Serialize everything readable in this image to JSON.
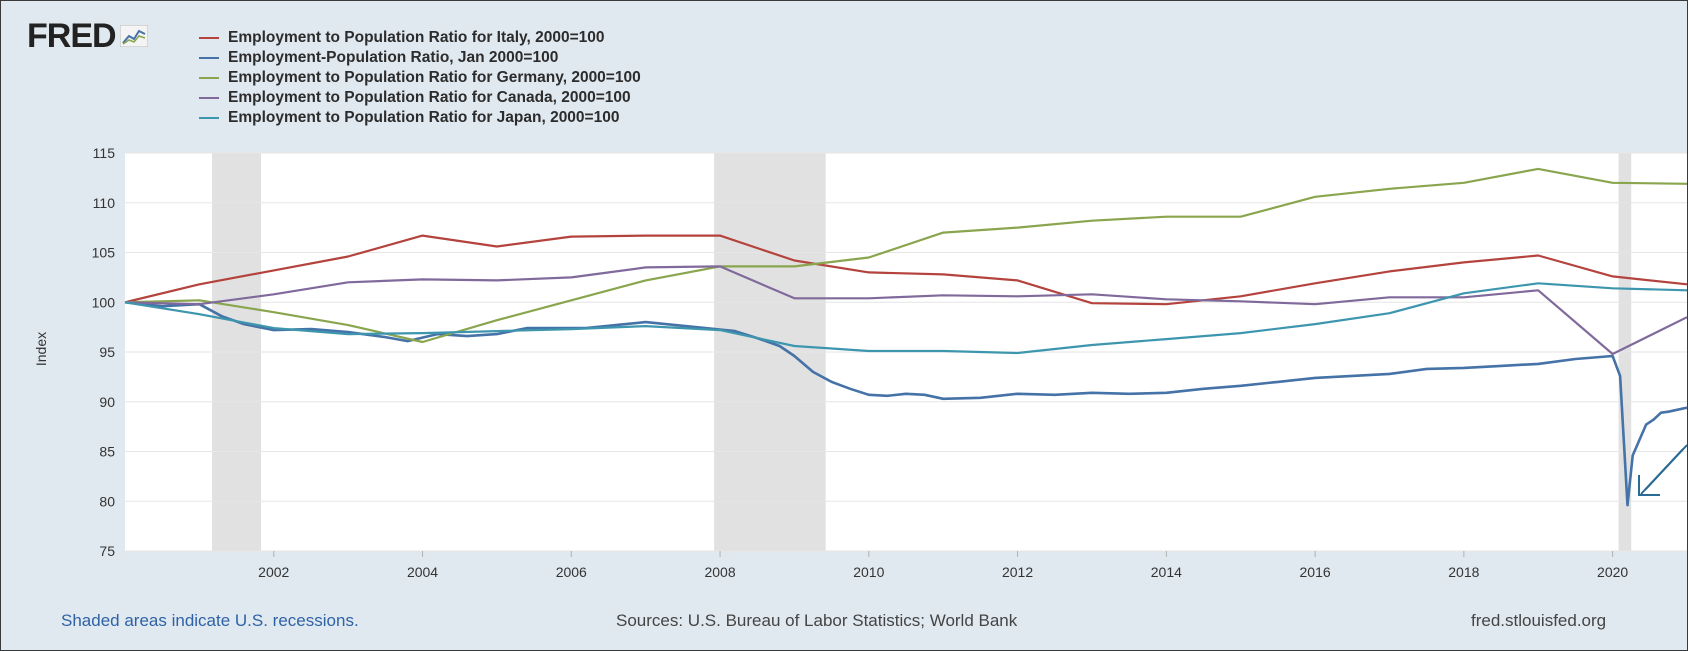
{
  "logo": {
    "text": "FRED"
  },
  "colors": {
    "italy": "#b5433d",
    "us": "#4572a7",
    "germany": "#89a54e",
    "canada": "#80699b",
    "japan": "#3d96ae",
    "recession": "#e1e1e1",
    "grid": "#e6e6e6"
  },
  "footer": {
    "recession_note": "Shaded areas indicate U.S. recessions.",
    "sources": "Sources: U.S. Bureau of Labor Statistics; World Bank",
    "url": "fred.stlouisfed.org"
  },
  "chart_data": {
    "type": "line",
    "title": "",
    "xlabel": "",
    "ylabel": "Index",
    "xlim": [
      2000.0,
      2021.0
    ],
    "ylim": [
      75,
      115
    ],
    "yticks": [
      75,
      80,
      85,
      90,
      95,
      100,
      105,
      110,
      115
    ],
    "xticks": [
      2002,
      2004,
      2006,
      2008,
      2010,
      2012,
      2014,
      2016,
      2018,
      2020
    ],
    "grid": true,
    "legend_position": "top-left",
    "recessions": [
      [
        2001.17,
        2001.83
      ],
      [
        2007.92,
        2009.42
      ],
      [
        2020.08,
        2020.25
      ]
    ],
    "series": [
      {
        "name": "Employment to Population Ratio for Italy, 2000=100",
        "color": "#b5433d",
        "x": [
          2000,
          2001,
          2002,
          2003,
          2004,
          2005,
          2006,
          2007,
          2008,
          2009,
          2010,
          2011,
          2012,
          2013,
          2014,
          2015,
          2016,
          2017,
          2018,
          2019,
          2020,
          2021
        ],
        "y": [
          100.0,
          101.8,
          103.2,
          104.6,
          106.7,
          105.6,
          106.6,
          106.7,
          106.7,
          104.2,
          103.0,
          102.8,
          102.2,
          99.9,
          99.8,
          100.6,
          101.9,
          103.1,
          104.0,
          104.7,
          102.6,
          101.8
        ]
      },
      {
        "name": "Employment-Population Ratio, Jan 2000=100",
        "color": "#4572a7",
        "x": [
          2000.0,
          2000.5,
          2001.0,
          2001.3,
          2001.6,
          2002.0,
          2002.5,
          2003.0,
          2003.5,
          2003.8,
          2004.2,
          2004.6,
          2005.0,
          2005.4,
          2005.8,
          2006.2,
          2006.6,
          2007.0,
          2007.4,
          2007.8,
          2008.2,
          2008.5,
          2008.8,
          2009.0,
          2009.25,
          2009.5,
          2009.75,
          2010.0,
          2010.25,
          2010.5,
          2010.75,
          2011.0,
          2011.5,
          2012.0,
          2012.5,
          2013.0,
          2013.5,
          2014.0,
          2014.5,
          2015.0,
          2015.5,
          2016.0,
          2016.5,
          2017.0,
          2017.5,
          2018.0,
          2018.5,
          2019.0,
          2019.5,
          2020.0,
          2020.1,
          2020.2,
          2020.27,
          2020.35,
          2020.45,
          2020.55,
          2020.65,
          2020.75,
          2021.0
        ],
        "y": [
          100.0,
          99.6,
          99.8,
          98.6,
          97.8,
          97.2,
          97.3,
          97.0,
          96.5,
          96.1,
          96.8,
          96.6,
          96.8,
          97.4,
          97.4,
          97.4,
          97.7,
          98.0,
          97.7,
          97.4,
          97.1,
          96.4,
          95.6,
          94.6,
          93.0,
          92.0,
          91.3,
          90.7,
          90.6,
          90.8,
          90.7,
          90.3,
          90.4,
          90.8,
          90.7,
          90.9,
          90.8,
          90.9,
          91.3,
          91.6,
          92.0,
          92.4,
          92.6,
          92.8,
          93.3,
          93.4,
          93.6,
          93.8,
          94.3,
          94.6,
          92.6,
          79.6,
          84.6,
          86.0,
          87.7,
          88.2,
          88.9,
          89.0,
          89.4
        ]
      },
      {
        "name": "Employment to Population Ratio for Germany, 2000=100",
        "color": "#89a54e",
        "x": [
          2000,
          2001,
          2002,
          2003,
          2004,
          2005,
          2006,
          2007,
          2008,
          2009,
          2010,
          2011,
          2012,
          2013,
          2014,
          2015,
          2016,
          2017,
          2018,
          2019,
          2020,
          2021
        ],
        "y": [
          100.0,
          100.2,
          99.0,
          97.7,
          96.0,
          98.2,
          100.2,
          102.2,
          103.6,
          103.6,
          104.5,
          107.0,
          107.5,
          108.2,
          108.6,
          108.6,
          110.6,
          111.4,
          112.0,
          113.4,
          112.0,
          111.9
        ]
      },
      {
        "name": "Employment to Population Ratio for Canada, 2000=100",
        "color": "#80699b",
        "x": [
          2000,
          2001,
          2002,
          2003,
          2004,
          2005,
          2006,
          2007,
          2008,
          2009,
          2010,
          2011,
          2012,
          2013,
          2014,
          2015,
          2016,
          2017,
          2018,
          2019,
          2020,
          2021
        ],
        "y": [
          100.0,
          99.8,
          100.8,
          102.0,
          102.3,
          102.2,
          102.5,
          103.5,
          103.6,
          100.4,
          100.4,
          100.7,
          100.6,
          100.8,
          100.3,
          100.1,
          99.8,
          100.5,
          100.5,
          101.2,
          94.8,
          98.5
        ]
      },
      {
        "name": "Employment to Population Ratio for Japan, 2000=100",
        "color": "#3d96ae",
        "x": [
          2000,
          2001,
          2002,
          2003,
          2004,
          2005,
          2006,
          2007,
          2008,
          2009,
          2010,
          2011,
          2012,
          2013,
          2014,
          2015,
          2016,
          2017,
          2018,
          2019,
          2020,
          2021
        ],
        "y": [
          100.0,
          98.8,
          97.4,
          96.8,
          96.9,
          97.1,
          97.3,
          97.6,
          97.2,
          95.6,
          95.1,
          95.1,
          94.9,
          95.7,
          96.3,
          96.9,
          97.8,
          98.9,
          100.9,
          101.9,
          101.4,
          101.2
        ]
      }
    ]
  }
}
